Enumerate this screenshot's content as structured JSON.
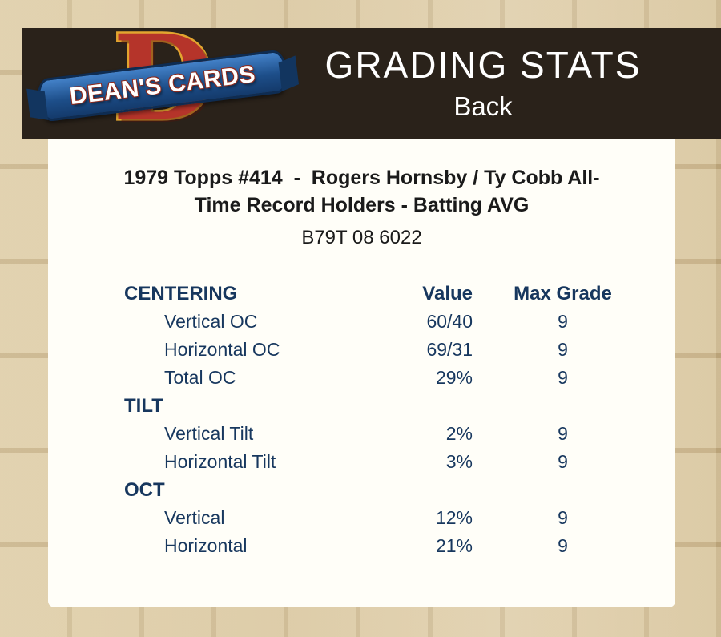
{
  "header": {
    "title": "GRADING STATS",
    "subtitle": "Back",
    "logo_letter": "D",
    "logo_text": "DEAN'S CARDS"
  },
  "card": {
    "title": "1979 Topps #414  -  Rogers Hornsby / Ty Cobb All-\nTime Record Holders - Batting AVG",
    "serial": "B79T 08 6022"
  },
  "table": {
    "header": {
      "label": "CENTERING",
      "value": "Value",
      "grade": "Max Grade"
    },
    "rows": [
      {
        "type": "data",
        "label": "Vertical OC",
        "value": "60/40",
        "grade": "9"
      },
      {
        "type": "data",
        "label": "Horizontal OC",
        "value": "69/31",
        "grade": "9"
      },
      {
        "type": "data",
        "label": "Total OC",
        "value": "29%",
        "grade": "9"
      },
      {
        "type": "section",
        "label": "TILT"
      },
      {
        "type": "data",
        "label": "Vertical Tilt",
        "value": "2%",
        "grade": "9"
      },
      {
        "type": "data",
        "label": "Horizontal Tilt",
        "value": "3%",
        "grade": "9"
      },
      {
        "type": "section",
        "label": "OCT"
      },
      {
        "type": "data",
        "label": "Vertical",
        "value": "12%",
        "grade": "9"
      },
      {
        "type": "data",
        "label": "Horizontal",
        "value": "21%",
        "grade": "9"
      }
    ]
  },
  "colors": {
    "page_background": "#d5c197",
    "header_bar": "#2a221a",
    "panel_background": "#fffef8",
    "table_navy": "#17375e",
    "title_text": "#1a1a1a",
    "header_text": "#ffffff",
    "logo_red": "#b5342a",
    "logo_gold": "#e2a52f",
    "logo_banner_blue": "#1d4e89"
  }
}
